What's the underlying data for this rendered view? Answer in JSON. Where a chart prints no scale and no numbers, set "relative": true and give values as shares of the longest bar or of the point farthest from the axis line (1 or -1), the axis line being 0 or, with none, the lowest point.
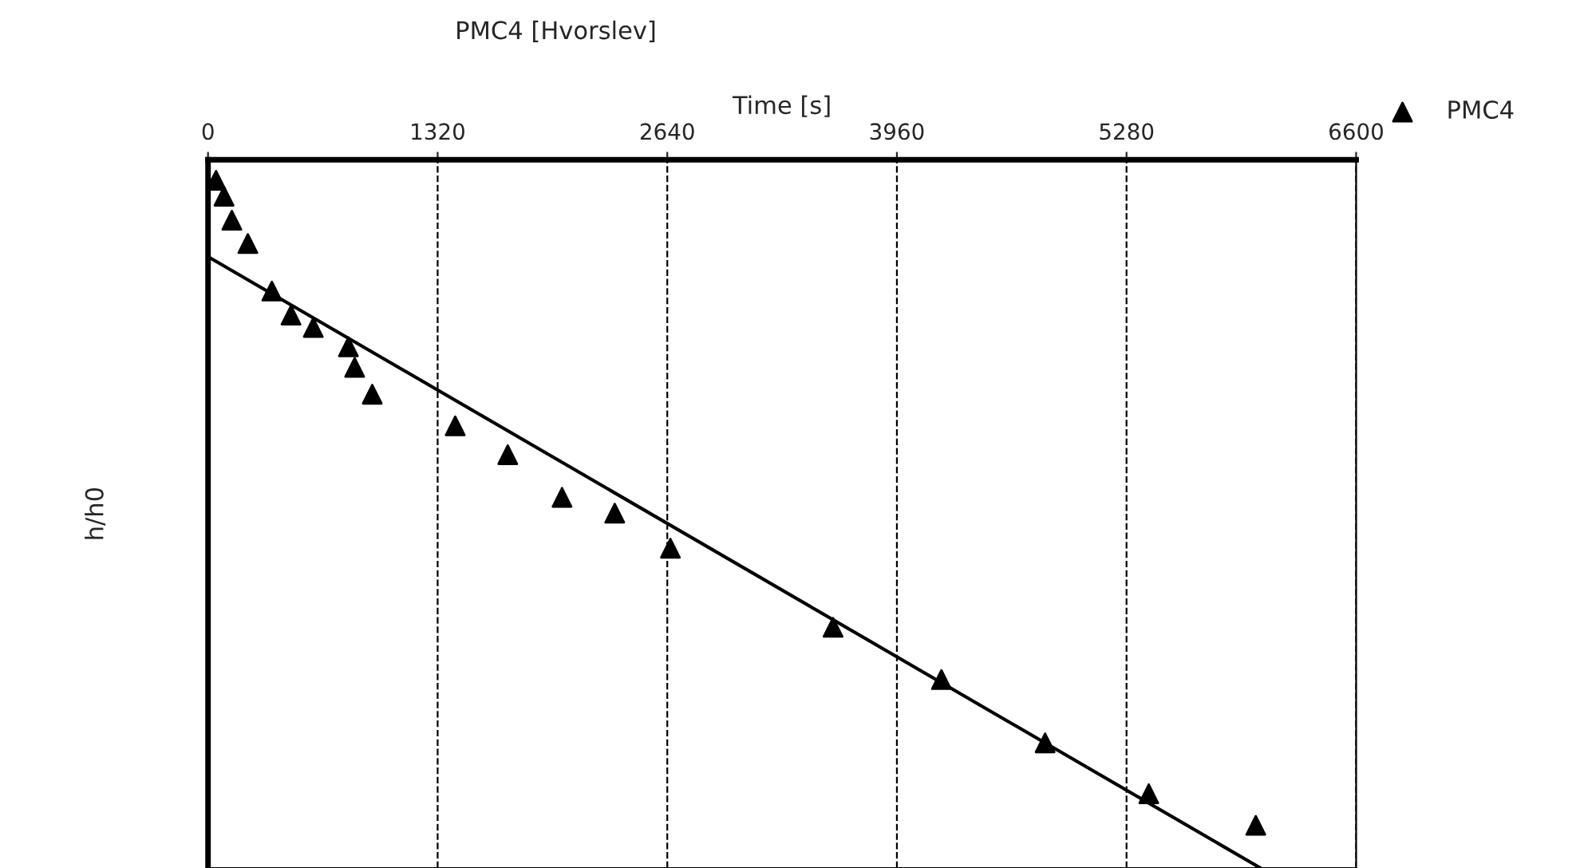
{
  "chart_data": {
    "type": "scatter",
    "title": "PMC4 [Hvorslev]",
    "xlabel": "Time [s]",
    "ylabel": "h/h0",
    "relative": true,
    "xlim": [
      0,
      6600
    ],
    "xticks": [
      0,
      1320,
      2640,
      3960,
      5280,
      6600
    ],
    "grid": "x",
    "legend": "top right",
    "series": [
      {
        "name": "PMC4",
        "marker": "triangle",
        "color": "#000000",
        "x": [
          46,
          92,
          137,
          229,
          367,
          477,
          605,
          807,
          843,
          944,
          1421,
          1723,
          2035,
          2338,
          2658,
          3593,
          4216,
          4812,
          5408,
          6023
        ],
        "values": [
          1.0,
          0.977,
          0.942,
          0.908,
          0.839,
          0.804,
          0.786,
          0.758,
          0.728,
          0.689,
          0.643,
          0.601,
          0.539,
          0.516,
          0.465,
          0.35,
          0.274,
          0.182,
          0.108,
          0.062
        ]
      },
      {
        "type": "line",
        "color": "#000000",
        "line_style": "solid",
        "marker": "none",
        "x": [
          0,
          6050
        ],
        "values": [
          0.889,
          0
        ]
      }
    ]
  }
}
